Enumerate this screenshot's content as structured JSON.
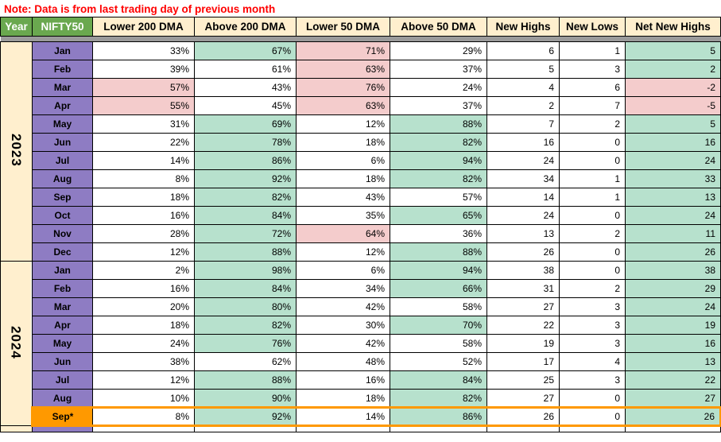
{
  "note": "Note: Data is from last trading day of previous month",
  "colors": {
    "header_green": "#6aa84f",
    "header_cream": "#ffefce",
    "month_purple": "#8e7cc3",
    "highlight_orange": "#ff9900",
    "positive_green": "#b7e1cd",
    "negative_pink": "#f4cccc",
    "note_red": "#ff0000",
    "separator_gray": "#9a9a9a"
  },
  "table": {
    "columns": [
      "Year",
      "NIFTY50",
      "Lower 200 DMA",
      "Above 200 DMA",
      "Lower 50 DMA",
      "Above 50 DMA",
      "New Highs",
      "New Lows",
      "Net New Highs"
    ],
    "header_styles": [
      "green",
      "green",
      "cream",
      "cream",
      "cream",
      "cream",
      "cream",
      "cream",
      "cream"
    ],
    "year_groups": [
      {
        "year": "2023",
        "rows": [
          {
            "month": "Jan",
            "values": [
              "33%",
              "67%",
              "71%",
              "29%",
              "6",
              "1",
              "5"
            ],
            "bgs": [
              "w",
              "g",
              "p",
              "w",
              "w",
              "w",
              "g"
            ]
          },
          {
            "month": "Feb",
            "values": [
              "39%",
              "61%",
              "63%",
              "37%",
              "5",
              "3",
              "2"
            ],
            "bgs": [
              "w",
              "w",
              "p",
              "w",
              "w",
              "w",
              "g"
            ]
          },
          {
            "month": "Mar",
            "values": [
              "57%",
              "43%",
              "76%",
              "24%",
              "4",
              "6",
              "-2"
            ],
            "bgs": [
              "p",
              "w",
              "p",
              "w",
              "w",
              "w",
              "p"
            ]
          },
          {
            "month": "Apr",
            "values": [
              "55%",
              "45%",
              "63%",
              "37%",
              "2",
              "7",
              "-5"
            ],
            "bgs": [
              "p",
              "w",
              "p",
              "w",
              "w",
              "w",
              "p"
            ]
          },
          {
            "month": "May",
            "values": [
              "31%",
              "69%",
              "12%",
              "88%",
              "7",
              "2",
              "5"
            ],
            "bgs": [
              "w",
              "g",
              "w",
              "g",
              "w",
              "w",
              "g"
            ]
          },
          {
            "month": "Jun",
            "values": [
              "22%",
              "78%",
              "18%",
              "82%",
              "16",
              "0",
              "16"
            ],
            "bgs": [
              "w",
              "g",
              "w",
              "g",
              "w",
              "w",
              "g"
            ]
          },
          {
            "month": "Jul",
            "values": [
              "14%",
              "86%",
              "6%",
              "94%",
              "24",
              "0",
              "24"
            ],
            "bgs": [
              "w",
              "g",
              "w",
              "g",
              "w",
              "w",
              "g"
            ]
          },
          {
            "month": "Aug",
            "values": [
              "8%",
              "92%",
              "18%",
              "82%",
              "34",
              "1",
              "33"
            ],
            "bgs": [
              "w",
              "g",
              "w",
              "g",
              "w",
              "w",
              "g"
            ]
          },
          {
            "month": "Sep",
            "values": [
              "18%",
              "82%",
              "43%",
              "57%",
              "14",
              "1",
              "13"
            ],
            "bgs": [
              "w",
              "g",
              "w",
              "w",
              "w",
              "w",
              "g"
            ]
          },
          {
            "month": "Oct",
            "values": [
              "16%",
              "84%",
              "35%",
              "65%",
              "24",
              "0",
              "24"
            ],
            "bgs": [
              "w",
              "g",
              "w",
              "g",
              "w",
              "w",
              "g"
            ]
          },
          {
            "month": "Nov",
            "values": [
              "28%",
              "72%",
              "64%",
              "36%",
              "13",
              "2",
              "11"
            ],
            "bgs": [
              "w",
              "g",
              "p",
              "w",
              "w",
              "w",
              "g"
            ]
          },
          {
            "month": "Dec",
            "values": [
              "12%",
              "88%",
              "12%",
              "88%",
              "26",
              "0",
              "26"
            ],
            "bgs": [
              "w",
              "g",
              "w",
              "g",
              "w",
              "w",
              "g"
            ]
          }
        ]
      },
      {
        "year": "2024",
        "rows": [
          {
            "month": "Jan",
            "values": [
              "2%",
              "98%",
              "6%",
              "94%",
              "38",
              "0",
              "38"
            ],
            "bgs": [
              "w",
              "g",
              "w",
              "g",
              "w",
              "w",
              "g"
            ]
          },
          {
            "month": "Feb",
            "values": [
              "16%",
              "84%",
              "34%",
              "66%",
              "31",
              "2",
              "29"
            ],
            "bgs": [
              "w",
              "g",
              "w",
              "g",
              "w",
              "w",
              "g"
            ]
          },
          {
            "month": "Mar",
            "values": [
              "20%",
              "80%",
              "42%",
              "58%",
              "27",
              "3",
              "24"
            ],
            "bgs": [
              "w",
              "g",
              "w",
              "w",
              "w",
              "w",
              "g"
            ]
          },
          {
            "month": "Apr",
            "values": [
              "18%",
              "82%",
              "30%",
              "70%",
              "22",
              "3",
              "19"
            ],
            "bgs": [
              "w",
              "g",
              "w",
              "g",
              "w",
              "w",
              "g"
            ]
          },
          {
            "month": "May",
            "values": [
              "24%",
              "76%",
              "42%",
              "58%",
              "19",
              "3",
              "16"
            ],
            "bgs": [
              "w",
              "g",
              "w",
              "w",
              "w",
              "w",
              "g"
            ]
          },
          {
            "month": "Jun",
            "values": [
              "38%",
              "62%",
              "48%",
              "52%",
              "17",
              "4",
              "13"
            ],
            "bgs": [
              "w",
              "w",
              "w",
              "w",
              "w",
              "w",
              "g"
            ]
          },
          {
            "month": "Jul",
            "values": [
              "12%",
              "88%",
              "16%",
              "84%",
              "25",
              "3",
              "22"
            ],
            "bgs": [
              "w",
              "g",
              "w",
              "g",
              "w",
              "w",
              "g"
            ]
          },
          {
            "month": "Aug",
            "values": [
              "10%",
              "90%",
              "18%",
              "82%",
              "27",
              "0",
              "27"
            ],
            "bgs": [
              "w",
              "g",
              "w",
              "g",
              "w",
              "w",
              "g"
            ]
          },
          {
            "month": "Sep*",
            "values": [
              "8%",
              "92%",
              "14%",
              "86%",
              "26",
              "0",
              "26"
            ],
            "bgs": [
              "w",
              "g",
              "w",
              "g",
              "w",
              "w",
              "g"
            ],
            "month_style": "orange",
            "highlight": true
          }
        ]
      }
    ],
    "partial_row_visible": true
  }
}
